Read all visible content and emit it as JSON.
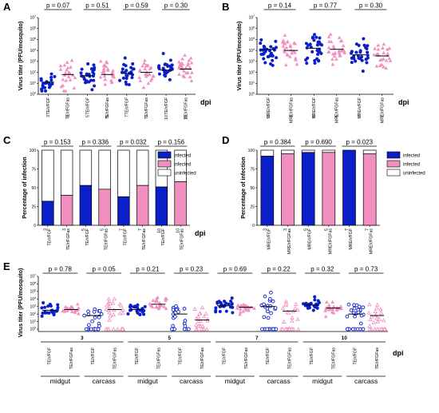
{
  "colors": {
    "blue": "#0a1fc8",
    "pink": "#f08fc0",
    "white": "#ffffff",
    "black": "#000000"
  },
  "chart_data": [
    {
      "panel": "A",
      "type": "scatter",
      "ylabel": "Virus titer (PFU/mosquito)",
      "xlabel": "dpi",
      "y_scale": "log",
      "ylim": [
        1,
        10000000
      ],
      "ytick_labels": [
        "10^0",
        "10^1",
        "10^2",
        "10^3",
        "10^4",
        "10^5",
        "10^6",
        "10^7"
      ],
      "categories": [
        "TE/r/FGF 3",
        "TE/r/FGFas 3",
        "TE/r/FGF 5",
        "TE/r/FGFas 5",
        "TE/r/FGF 7",
        "TE/r/FGFas 7",
        "TE/r/FGF 10",
        "TE/r/FGFas 10"
      ],
      "x_labels": [
        "TE/r/FGF",
        "TE/r/FGFas",
        "TE/r/FGF",
        "TE/r/FGFas",
        "TE/r/FGF",
        "TE/r/FGFas",
        "TE/r/FGF",
        "TE/r/FGFas"
      ],
      "dpi_labels": [
        "3",
        "3",
        "5",
        "5",
        "7",
        "7",
        "10",
        "10"
      ],
      "medians_log10": [
        1.1,
        1.8,
        1.7,
        1.8,
        1.9,
        2.0,
        2.2,
        2.3
      ],
      "p_values": [
        "p = 0.07",
        "p = 0.51",
        "p = 0.59",
        "p = 0.30"
      ],
      "point_counts": [
        22,
        24,
        26,
        26,
        24,
        26,
        28,
        30
      ]
    },
    {
      "panel": "B",
      "type": "scatter",
      "ylabel": "Virus titer (PFU/mosquito)",
      "xlabel": "dpi",
      "y_scale": "log",
      "ylim": [
        1,
        10000000
      ],
      "ytick_labels": [
        "10^0",
        "10^1",
        "10^2",
        "10^3",
        "10^4",
        "10^5",
        "10^6",
        "10^7"
      ],
      "categories": [
        "MRE/r/FGF 3",
        "MRE/r/FGFas 3",
        "MRE/r/FGF 5",
        "MRE/r/FGFas 5",
        "MRE/r/FGF 7",
        "MRE/r/FGFas 7"
      ],
      "x_labels": [
        "MRE/r/FGF",
        "MRE/r/FGFas",
        "MRE/r/FGF",
        "MRE/r/FGFas",
        "MRE/r/FGF",
        "MRE/r/FGFas"
      ],
      "dpi_labels": [
        "3",
        "3",
        "5",
        "5",
        "7",
        "7"
      ],
      "medians_log10": [
        4.1,
        4.0,
        4.2,
        4.1,
        3.6,
        3.5
      ],
      "p_values": [
        "p = 0.14",
        "p = 0.77",
        "p = 0.30"
      ],
      "point_counts": [
        30,
        28,
        32,
        30,
        28,
        26
      ]
    },
    {
      "panel": "C",
      "type": "bar",
      "stacked": true,
      "ylabel": "Percentage of infection",
      "xlabel": "dpi",
      "ylim": [
        0,
        100
      ],
      "ytick_labels": [
        "0",
        "25",
        "50",
        "75",
        "100"
      ],
      "categories": [
        "TE/r/FGF 3",
        "TE/r/FGFas 3",
        "TE/r/FGF 5",
        "TE/r/FGFas 5",
        "TE/r/FGF 7",
        "TE/r/FGFas 7",
        "TE/r/FGF 10",
        "TE/r/FGFas 10"
      ],
      "x_labels": [
        "TE/r/FGF",
        "TE/r/FGFas",
        "TE/r/FGF",
        "TE/r/FGFas",
        "TE/r/FGF",
        "TE/r/FGFas",
        "TE/r/FGF",
        "TE/r/FGFas"
      ],
      "dpi_labels": [
        "3",
        "3",
        "5",
        "5",
        "7",
        "7",
        "10",
        "10"
      ],
      "infected_pct": [
        32,
        40,
        53,
        48,
        38,
        53,
        51,
        58
      ],
      "p_values": [
        "p = 0.153",
        "p = 0.336",
        "p = 0.032",
        "p = 0.156"
      ],
      "legend": [
        "infected",
        "infected",
        "uninfected"
      ],
      "legend_placement": "top-right"
    },
    {
      "panel": "D",
      "type": "bar",
      "stacked": true,
      "ylabel": "Percentage of infection",
      "xlabel": "",
      "ylim": [
        0,
        100
      ],
      "ytick_labels": [
        "0",
        "25",
        "50",
        "75",
        "100"
      ],
      "categories": [
        "MRE/r/FGF 3",
        "MRE/r/FGFas 3",
        "MRE/r/FGF 5",
        "MRE/r/FGFas 5",
        "MRE/r/FGF 7",
        "MRE/r/FGFas 7"
      ],
      "x_labels": [
        "MRE/r/FGF",
        "MRE/r/FGFas",
        "MRE/r/FGF",
        "MRE/r/FGFas",
        "MRE/r/FGF",
        "MRE/r/FGFas"
      ],
      "dpi_labels": [
        "3",
        "3",
        "5",
        "5",
        "7",
        "7"
      ],
      "infected_pct": [
        92,
        95,
        97,
        97,
        100,
        95
      ],
      "p_values": [
        "p = 0.384",
        "p = 0.690",
        "p = 0.023"
      ],
      "legend": [
        "infected",
        "infected",
        "uninfected"
      ],
      "legend_placement": "right"
    },
    {
      "panel": "E",
      "type": "scatter",
      "ylabel": "Virus titer (PFU/mosquito)",
      "xlabel": "dpi",
      "y_scale": "log",
      "ylim": [
        1,
        10000000
      ],
      "ytick_labels": [
        "10^0",
        "10^1",
        "10^2",
        "10^3",
        "10^4",
        "10^5",
        "10^6",
        "10^7"
      ],
      "categories": [
        "midgut 3 TE/r/FGF",
        "midgut 3 TE/r/FGFas",
        "carcass 3 TE/r/FGF",
        "carcass 3 TE/r/FGFas",
        "midgut 5 TE/r/FGF",
        "midgut 5 TE/r/FGFas",
        "carcass 5 TE/r/FGF",
        "carcass 5 TE/r/FGFas",
        "midgut 7 TE/r/FGF",
        "midgut 7 TE/r/FGFas",
        "carcass 7 TE/r/FGF",
        "carcass 7 TE/r/FGFas",
        "midgut 10 TE/r/FGF",
        "midgut 10 TE/r/FGFas",
        "carcass 10 TE/r/FGF",
        "carcass 10 TE/r/FGFas"
      ],
      "x_labels": [
        "TE/r/FGF",
        "TE/r/FGFas",
        "TE/r/FGF",
        "TE/r/FGFas",
        "TE/r/FGF",
        "TE/r/FGFas",
        "TE/r/FGF",
        "TE/r/FGFas",
        "TE/r/FGF",
        "TE/r/FGFas",
        "TE/r/FGF",
        "TE/r/FGFas",
        "TE/r/FGF",
        "TE/r/FGFas",
        "TE/r/FGF",
        "TE/r/FGFas"
      ],
      "dpi_groups": [
        "3",
        "5",
        "7",
        "10"
      ],
      "tissue_groups": [
        "midgut",
        "carcass",
        "midgut",
        "carcass",
        "midgut",
        "carcass",
        "midgut",
        "carcass"
      ],
      "medians_log10": [
        2.5,
        2.6,
        1.8,
        2.6,
        2.6,
        3.3,
        2.0,
        1.2,
        3.1,
        2.9,
        3.0,
        2.4,
        3.2,
        2.8,
        2.0,
        1.8
      ],
      "p_values": [
        "p = 0.78",
        "p = 0.05",
        "p = 0.21",
        "p = 0.23",
        "p = 0.69",
        "p = 0.22",
        "p = 0.32",
        "p = 0.73"
      ],
      "point_counts": [
        22,
        22,
        28,
        28,
        24,
        22,
        24,
        24,
        26,
        24,
        28,
        28,
        24,
        24,
        28,
        28
      ]
    }
  ],
  "panel_labels": [
    "A",
    "B",
    "C",
    "D",
    "E"
  ],
  "dpi_text": "dpi"
}
